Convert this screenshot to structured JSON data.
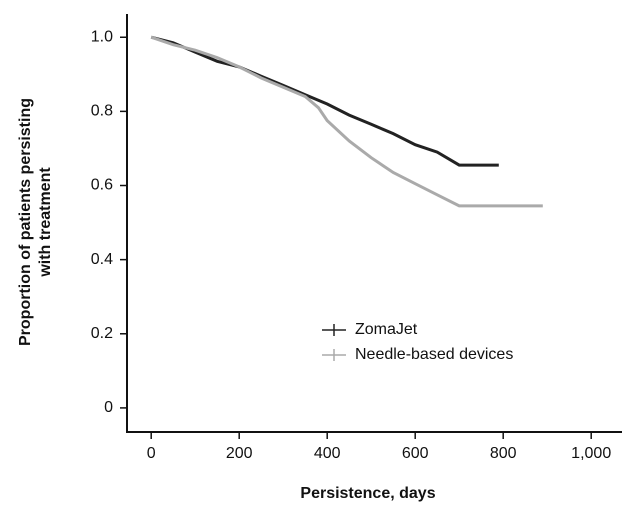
{
  "chart_data": {
    "type": "line",
    "x_label": "Persistence, days",
    "y_label": [
      "Proportion of patients persisting",
      "with treatment"
    ],
    "xlim": [
      -55,
      1070
    ],
    "ylim": [
      -0.065,
      1.06
    ],
    "xticks": [
      0,
      200,
      400,
      600,
      800,
      {
        "value": 1000,
        "label": "1,000"
      }
    ],
    "yticks": [
      0,
      0.2,
      0.4,
      0.6,
      0.8,
      {
        "value": 1,
        "label": "1.0"
      }
    ],
    "legend": "center",
    "series": [
      {
        "name": "ZomaJet",
        "color": "#222222",
        "x": [
          0,
          50,
          100,
          150,
          200,
          250,
          300,
          350,
          400,
          450,
          500,
          550,
          600,
          650,
          700,
          790
        ],
        "values": [
          1.0,
          0.985,
          0.96,
          0.935,
          0.92,
          0.895,
          0.87,
          0.845,
          0.82,
          0.79,
          0.765,
          0.74,
          0.71,
          0.69,
          0.655,
          0.655
        ]
      },
      {
        "name": "Needle-based devices",
        "color": "#aaaaaa",
        "x": [
          0,
          50,
          100,
          150,
          200,
          250,
          300,
          350,
          380,
          400,
          450,
          500,
          550,
          600,
          650,
          700,
          800,
          890
        ],
        "values": [
          1.0,
          0.98,
          0.965,
          0.945,
          0.92,
          0.89,
          0.865,
          0.84,
          0.81,
          0.775,
          0.72,
          0.675,
          0.635,
          0.605,
          0.575,
          0.545,
          0.545,
          0.545
        ]
      }
    ]
  }
}
